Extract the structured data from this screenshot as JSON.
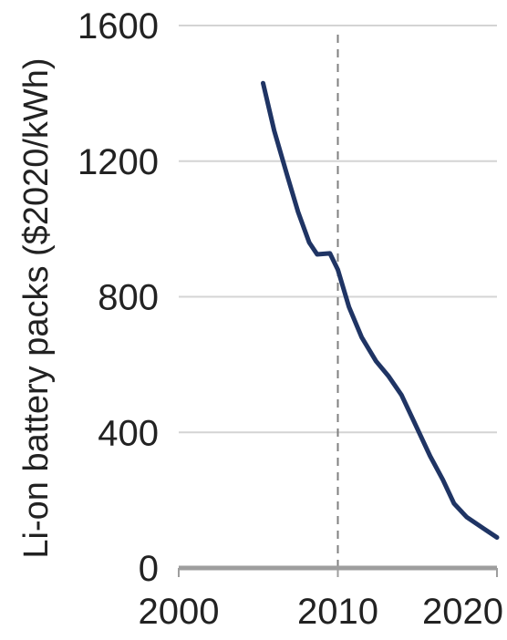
{
  "chart_data": {
    "type": "line",
    "title": "",
    "xlabel": "",
    "ylabel": "Li-on battery packs ($2020/kWh)",
    "xlim": [
      2000,
      2020
    ],
    "ylim": [
      0,
      1600
    ],
    "x_ticks": [
      2000,
      2010,
      2020
    ],
    "y_ticks": [
      0,
      400,
      800,
      1200,
      1600
    ],
    "grid": "horizontal",
    "reference_lines": [
      {
        "axis": "x",
        "value": 2010,
        "style": "dashed"
      }
    ],
    "series": [
      {
        "x": [
          2005.3,
          2006,
          2006.8,
          2007.5,
          2008.2,
          2008.7,
          2009.5,
          2010,
          2010.7,
          2011.5,
          2012.4,
          2013.2,
          2014,
          2014.8,
          2015.8,
          2016.6,
          2017.3,
          2018.1,
          2019.2,
          2020
        ],
        "y": [
          1430,
          1290,
          1160,
          1050,
          960,
          925,
          928,
          880,
          770,
          680,
          610,
          565,
          510,
          430,
          330,
          260,
          190,
          150,
          115,
          90
        ]
      }
    ],
    "colors": {
      "line": "#1f3464",
      "grid": "#d4d4d4",
      "axis": "#9e9e9e",
      "ref_line": "#808080"
    }
  }
}
